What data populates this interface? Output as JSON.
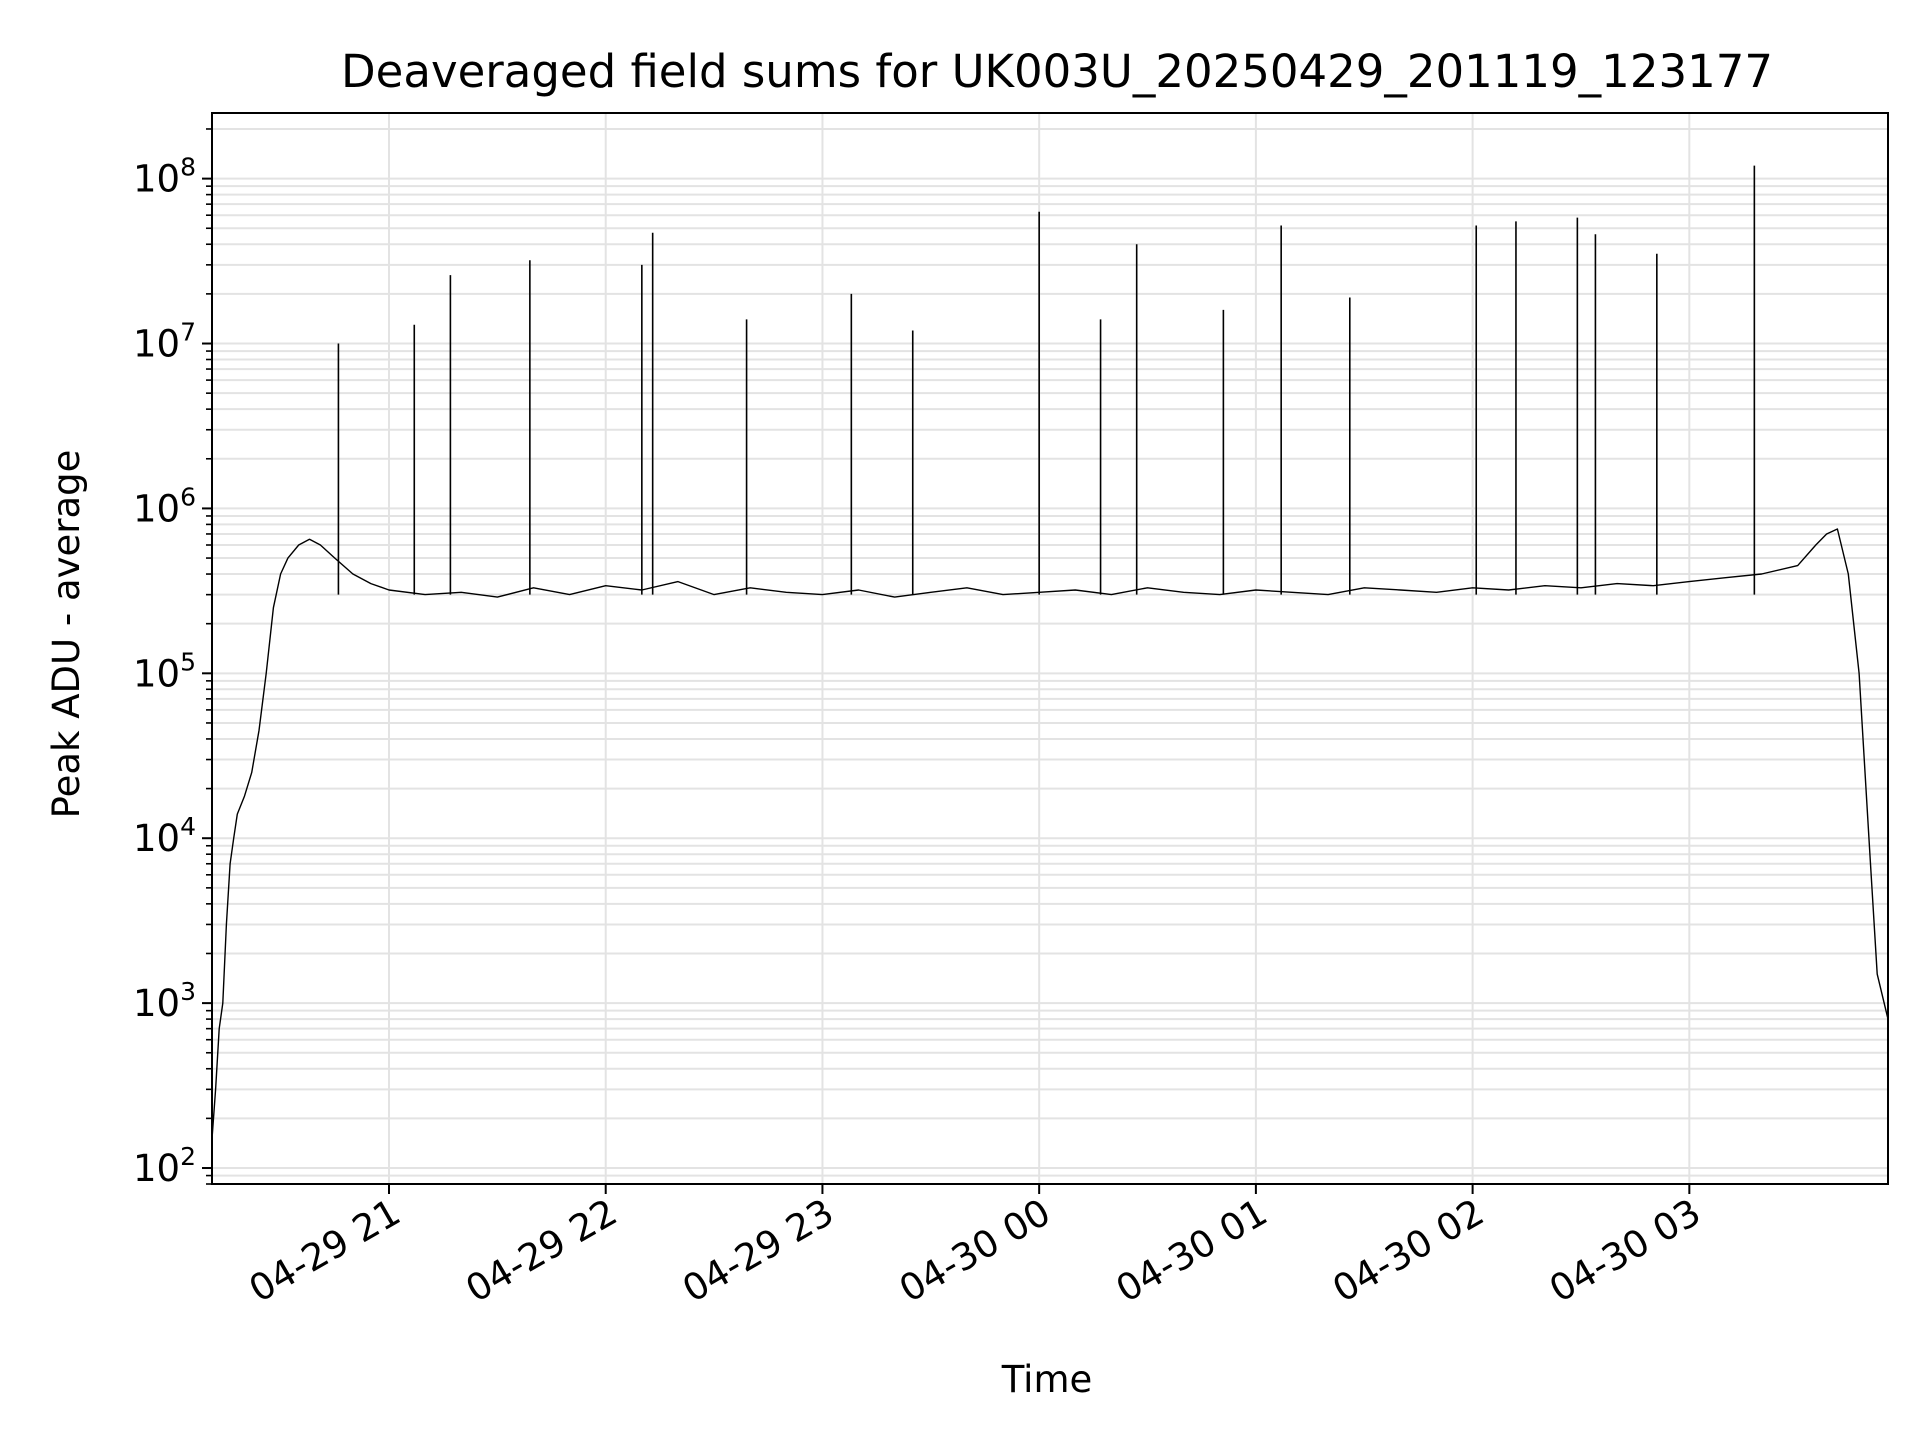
{
  "chart_data": {
    "type": "line",
    "title": "Deaveraged field sums for UK003U_20250429_201119_123177",
    "xlabel": "Time",
    "ylabel": "Peak ADU - average",
    "yscale": "log",
    "ylim": [
      80,
      250000000
    ],
    "xlim": [
      "2025-04-29 20:11",
      "2025-04-30 03:55"
    ],
    "grid": true,
    "line_color": "#000000",
    "grid_color": "#e3e3e3",
    "x_ticks": [
      {
        "value": "2025-04-29 21:00",
        "label": "04-29 21"
      },
      {
        "value": "2025-04-29 22:00",
        "label": "04-29 22"
      },
      {
        "value": "2025-04-29 23:00",
        "label": "04-29 23"
      },
      {
        "value": "2025-04-30 00:00",
        "label": "04-30 00"
      },
      {
        "value": "2025-04-30 01:00",
        "label": "04-30 01"
      },
      {
        "value": "2025-04-30 02:00",
        "label": "04-30 02"
      },
      {
        "value": "2025-04-30 03:00",
        "label": "04-30 03"
      }
    ],
    "y_ticks": [
      {
        "value": 100,
        "base": "10",
        "exp": "2"
      },
      {
        "value": 1000,
        "base": "10",
        "exp": "3"
      },
      {
        "value": 10000,
        "base": "10",
        "exp": "4"
      },
      {
        "value": 100000,
        "base": "10",
        "exp": "5"
      },
      {
        "value": 1000000,
        "base": "10",
        "exp": "6"
      },
      {
        "value": 10000000,
        "base": "10",
        "exp": "7"
      },
      {
        "value": 100000000,
        "base": "10",
        "exp": "8"
      }
    ],
    "series": [
      {
        "x": [
          "2025-04-29 20:11",
          "2025-04-29 20:12",
          "2025-04-29 20:13",
          "2025-04-29 20:14",
          "2025-04-29 20:15",
          "2025-04-29 20:16",
          "2025-04-29 20:17",
          "2025-04-29 20:18",
          "2025-04-29 20:20",
          "2025-04-29 20:22",
          "2025-04-29 20:24",
          "2025-04-29 20:26",
          "2025-04-29 20:28",
          "2025-04-29 20:30",
          "2025-04-29 20:32",
          "2025-04-29 20:35",
          "2025-04-29 20:38",
          "2025-04-29 20:41",
          "2025-04-29 20:45",
          "2025-04-29 20:50",
          "2025-04-29 20:55",
          "2025-04-29 21:00",
          "2025-04-29 21:10",
          "2025-04-29 21:20",
          "2025-04-29 21:30",
          "2025-04-29 21:40",
          "2025-04-29 21:50",
          "2025-04-29 22:00",
          "2025-04-29 22:10",
          "2025-04-29 22:20",
          "2025-04-29 22:30",
          "2025-04-29 22:40",
          "2025-04-29 22:50",
          "2025-04-29 23:00",
          "2025-04-29 23:10",
          "2025-04-29 23:20",
          "2025-04-29 23:30",
          "2025-04-29 23:40",
          "2025-04-29 23:50",
          "2025-04-30 00:00",
          "2025-04-30 00:10",
          "2025-04-30 00:20",
          "2025-04-30 00:30",
          "2025-04-30 00:40",
          "2025-04-30 00:50",
          "2025-04-30 01:00",
          "2025-04-30 01:10",
          "2025-04-30 01:20",
          "2025-04-30 01:30",
          "2025-04-30 01:40",
          "2025-04-30 01:50",
          "2025-04-30 02:00",
          "2025-04-30 02:10",
          "2025-04-30 02:20",
          "2025-04-30 02:30",
          "2025-04-30 02:40",
          "2025-04-30 02:50",
          "2025-04-30 03:00",
          "2025-04-30 03:10",
          "2025-04-30 03:20",
          "2025-04-30 03:30",
          "2025-04-30 03:35",
          "2025-04-30 03:38",
          "2025-04-30 03:41",
          "2025-04-30 03:44",
          "2025-04-30 03:47",
          "2025-04-30 03:50",
          "2025-04-30 03:52",
          "2025-04-30 03:55"
        ],
        "values": [
          150,
          300,
          700,
          1000,
          3000,
          7000,
          10000,
          14000,
          18000,
          25000,
          45000,
          100000,
          250000,
          400000,
          500000,
          600000,
          650000,
          600000,
          500000,
          400000,
          350000,
          320000,
          300000,
          310000,
          290000,
          330000,
          300000,
          340000,
          320000,
          360000,
          300000,
          330000,
          310000,
          300000,
          320000,
          290000,
          310000,
          330000,
          300000,
          310000,
          320000,
          300000,
          330000,
          310000,
          300000,
          320000,
          310000,
          300000,
          330000,
          320000,
          310000,
          330000,
          320000,
          340000,
          330000,
          350000,
          340000,
          360000,
          380000,
          400000,
          450000,
          600000,
          700000,
          750000,
          400000,
          100000,
          8000,
          1500,
          800
        ]
      }
    ],
    "spikes": [
      {
        "x": "2025-04-29 20:46",
        "value": 10000000
      },
      {
        "x": "2025-04-29 21:07",
        "value": 13000000
      },
      {
        "x": "2025-04-29 21:17",
        "value": 26000000
      },
      {
        "x": "2025-04-29 21:39",
        "value": 32000000
      },
      {
        "x": "2025-04-29 22:10",
        "value": 30000000
      },
      {
        "x": "2025-04-29 22:13",
        "value": 47000000
      },
      {
        "x": "2025-04-29 22:39",
        "value": 14000000
      },
      {
        "x": "2025-04-29 23:08",
        "value": 20000000
      },
      {
        "x": "2025-04-29 23:25",
        "value": 12000000
      },
      {
        "x": "2025-04-30 00:00",
        "value": 63000000
      },
      {
        "x": "2025-04-30 00:17",
        "value": 14000000
      },
      {
        "x": "2025-04-30 00:27",
        "value": 40000000
      },
      {
        "x": "2025-04-30 00:51",
        "value": 16000000
      },
      {
        "x": "2025-04-30 01:07",
        "value": 52000000
      },
      {
        "x": "2025-04-30 01:26",
        "value": 19000000
      },
      {
        "x": "2025-04-30 02:01",
        "value": 52000000
      },
      {
        "x": "2025-04-30 02:12",
        "value": 55000000
      },
      {
        "x": "2025-04-30 02:29",
        "value": 58000000
      },
      {
        "x": "2025-04-30 02:34",
        "value": 46000000
      },
      {
        "x": "2025-04-30 02:51",
        "value": 35000000
      },
      {
        "x": "2025-04-30 03:18",
        "value": 120000000
      }
    ]
  }
}
